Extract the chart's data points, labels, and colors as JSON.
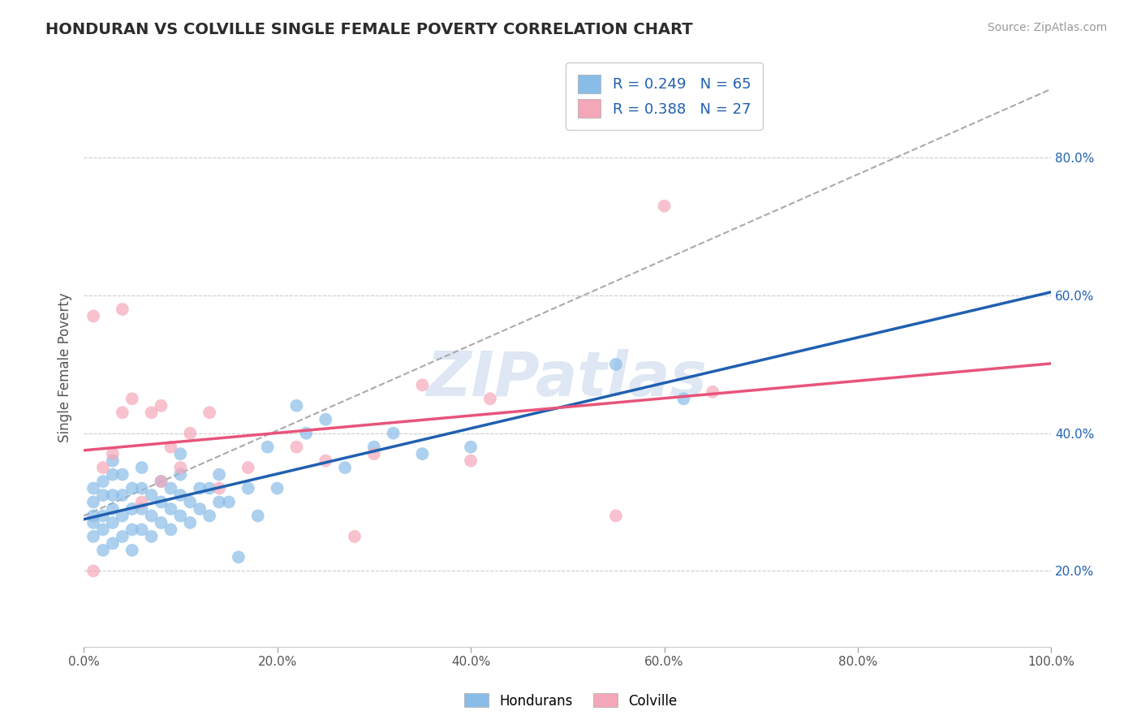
{
  "title": "HONDURAN VS COLVILLE SINGLE FEMALE POVERTY CORRELATION CHART",
  "source": "Source: ZipAtlas.com",
  "ylabel": "Single Female Poverty",
  "xlim": [
    0.0,
    1.0
  ],
  "ylim": [
    0.09,
    0.9
  ],
  "xticks": [
    0.0,
    0.2,
    0.4,
    0.6,
    0.8,
    1.0
  ],
  "xtick_labels": [
    "0.0%",
    "20.0%",
    "40.0%",
    "60.0%",
    "80.0%",
    "100.0%"
  ],
  "yticks_right": [
    0.2,
    0.4,
    0.6,
    0.8
  ],
  "ytick_labels_right": [
    "20.0%",
    "40.0%",
    "60.0%",
    "80.0%"
  ],
  "R_honduran": 0.249,
  "N_honduran": 65,
  "R_colville": 0.388,
  "N_colville": 27,
  "legend_label_honduran": "Hondurans",
  "legend_label_colville": "Colville",
  "color_honduran": "#89bde8",
  "color_colville": "#f4a7b9",
  "color_line_honduran": "#2060b0",
  "color_line_colville": "#e8547a",
  "color_legend_text": "#2060b0",
  "color_title": "#2c2c2c",
  "background_color": "#ffffff",
  "watermark_text": "ZIPatlas",
  "grid_color": "#cccccc",
  "dashed_line_color": "#aaaaaa",
  "honduran_x": [
    0.01,
    0.01,
    0.01,
    0.01,
    0.01,
    0.02,
    0.02,
    0.02,
    0.02,
    0.02,
    0.03,
    0.03,
    0.03,
    0.03,
    0.03,
    0.03,
    0.04,
    0.04,
    0.04,
    0.04,
    0.05,
    0.05,
    0.05,
    0.05,
    0.06,
    0.06,
    0.06,
    0.06,
    0.07,
    0.07,
    0.07,
    0.08,
    0.08,
    0.08,
    0.09,
    0.09,
    0.09,
    0.1,
    0.1,
    0.1,
    0.1,
    0.11,
    0.11,
    0.12,
    0.12,
    0.13,
    0.13,
    0.14,
    0.14,
    0.15,
    0.16,
    0.17,
    0.18,
    0.19,
    0.2,
    0.22,
    0.23,
    0.25,
    0.27,
    0.3,
    0.32,
    0.35,
    0.4,
    0.55,
    0.62
  ],
  "honduran_y": [
    0.25,
    0.27,
    0.28,
    0.3,
    0.32,
    0.23,
    0.26,
    0.28,
    0.31,
    0.33,
    0.24,
    0.27,
    0.29,
    0.31,
    0.34,
    0.36,
    0.25,
    0.28,
    0.31,
    0.34,
    0.23,
    0.26,
    0.29,
    0.32,
    0.26,
    0.29,
    0.32,
    0.35,
    0.25,
    0.28,
    0.31,
    0.27,
    0.3,
    0.33,
    0.26,
    0.29,
    0.32,
    0.28,
    0.31,
    0.34,
    0.37,
    0.27,
    0.3,
    0.29,
    0.32,
    0.28,
    0.32,
    0.3,
    0.34,
    0.3,
    0.22,
    0.32,
    0.28,
    0.38,
    0.32,
    0.44,
    0.4,
    0.42,
    0.35,
    0.38,
    0.4,
    0.37,
    0.38,
    0.5,
    0.45
  ],
  "colville_x": [
    0.01,
    0.01,
    0.02,
    0.03,
    0.04,
    0.04,
    0.05,
    0.06,
    0.07,
    0.08,
    0.08,
    0.09,
    0.1,
    0.11,
    0.13,
    0.14,
    0.17,
    0.22,
    0.25,
    0.28,
    0.3,
    0.35,
    0.4,
    0.42,
    0.55,
    0.6,
    0.65
  ],
  "colville_y": [
    0.57,
    0.2,
    0.35,
    0.37,
    0.43,
    0.58,
    0.45,
    0.3,
    0.43,
    0.44,
    0.33,
    0.38,
    0.35,
    0.4,
    0.43,
    0.32,
    0.35,
    0.38,
    0.36,
    0.25,
    0.37,
    0.47,
    0.36,
    0.45,
    0.28,
    0.73,
    0.46
  ]
}
